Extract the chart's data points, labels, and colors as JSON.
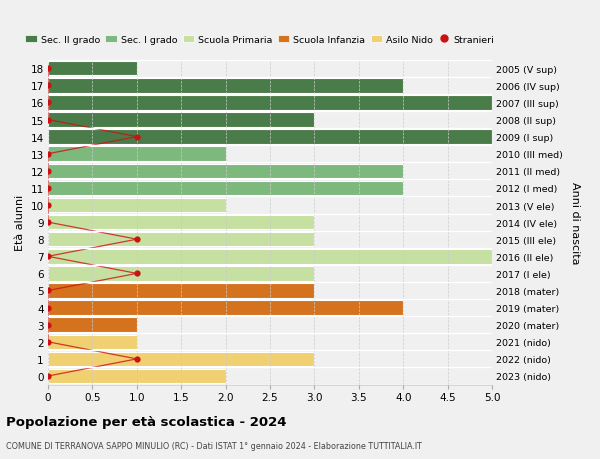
{
  "ages": [
    18,
    17,
    16,
    15,
    14,
    13,
    12,
    11,
    10,
    9,
    8,
    7,
    6,
    5,
    4,
    3,
    2,
    1,
    0
  ],
  "years": [
    "2005 (V sup)",
    "2006 (IV sup)",
    "2007 (III sup)",
    "2008 (II sup)",
    "2009 (I sup)",
    "2010 (III med)",
    "2011 (II med)",
    "2012 (I med)",
    "2013 (V ele)",
    "2014 (IV ele)",
    "2015 (III ele)",
    "2016 (II ele)",
    "2017 (I ele)",
    "2018 (mater)",
    "2019 (mater)",
    "2020 (mater)",
    "2021 (nido)",
    "2022 (nido)",
    "2023 (nido)"
  ],
  "bar_values": [
    1,
    4,
    5,
    3,
    5,
    2,
    4,
    4,
    2,
    3,
    3,
    5,
    3,
    3,
    4,
    1,
    1,
    3,
    2
  ],
  "bar_colors": [
    "#4a7c4a",
    "#4a7c4a",
    "#4a7c4a",
    "#4a7c4a",
    "#4a7c4a",
    "#7db87d",
    "#7db87d",
    "#7db87d",
    "#c5e0a0",
    "#c5e0a0",
    "#c5e0a0",
    "#c5e0a0",
    "#c5e0a0",
    "#d4721e",
    "#d4721e",
    "#d4721e",
    "#f0d070",
    "#f0d070",
    "#f0d070"
  ],
  "stranieri_values": [
    0,
    0,
    0,
    0,
    1,
    0,
    0,
    0,
    0,
    0,
    1,
    0,
    1,
    0,
    0,
    0,
    0,
    1,
    0
  ],
  "xlim": [
    0,
    5.0
  ],
  "xticks": [
    0,
    0.5,
    1.0,
    1.5,
    2.0,
    2.5,
    3.0,
    3.5,
    4.0,
    4.5,
    5.0
  ],
  "xtick_labels": [
    "0",
    "0.5",
    "1.0",
    "1.5",
    "2.0",
    "2.5",
    "3.0",
    "3.5",
    "4.0",
    "4.5",
    "5.0"
  ],
  "ylabel_left": "Età alunni",
  "ylabel_right": "Anni di nascita",
  "title": "Popolazione per età scolastica - 2024",
  "subtitle": "COMUNE DI TERRANOVA SAPPO MINULIO (RC) - Dati ISTAT 1° gennaio 2024 - Elaborazione TUTTITALIA.IT",
  "legend_labels": [
    "Sec. II grado",
    "Sec. I grado",
    "Scuola Primaria",
    "Scuola Infanzia",
    "Asilo Nido",
    "Stranieri"
  ],
  "legend_colors": [
    "#4a7c4a",
    "#7db87d",
    "#c5e0a0",
    "#d4721e",
    "#f0d070",
    "#cc1111"
  ],
  "bg_color": "#f0f0f0",
  "plot_bg_color": "#f0f0f0",
  "bar_height": 0.85,
  "stranieri_color": "#cc1111",
  "stranieri_line_color": "#cc1111"
}
